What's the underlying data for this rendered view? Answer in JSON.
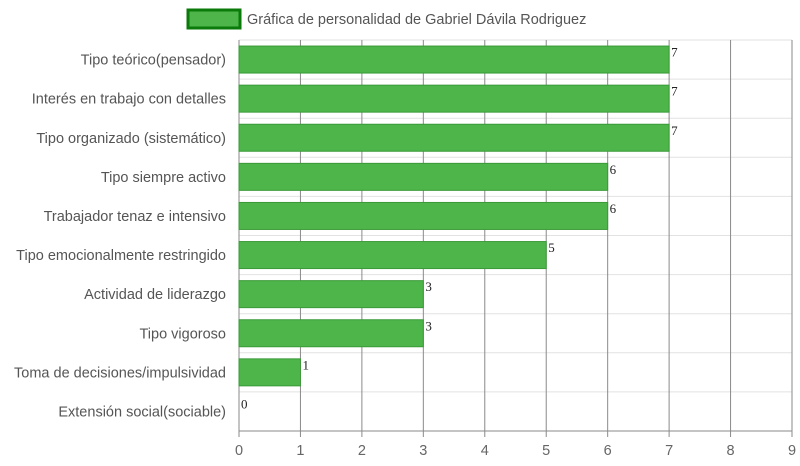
{
  "chart_data": {
    "type": "bar",
    "orientation": "horizontal",
    "categories": [
      "Tipo teórico(pensador)",
      "Interés en trabajo con detalles",
      "Tipo organizado (sistemático)",
      "Tipo siempre activo",
      "Trabajador tenaz e intensivo",
      "Tipo emocionalmente restringido",
      "Actividad de liderazgo",
      "Tipo vigoroso",
      "Toma de decisiones/impulsividad",
      "Extensión social(sociable)"
    ],
    "series": [
      {
        "name": "Gráfica de personalidad de Gabriel Dávila Rodriguez",
        "values": [
          7,
          7,
          7,
          6,
          6,
          5,
          3,
          3,
          1,
          0
        ]
      }
    ],
    "xlim": [
      0,
      9
    ],
    "xticks": [
      0,
      1,
      2,
      3,
      4,
      5,
      6,
      7,
      8,
      9
    ],
    "grid": true,
    "legend_position": "top",
    "data_labels": true,
    "colors": {
      "bar_fill": "#4db54a",
      "bar_stroke": "#3a9a38",
      "legend_fill": "#4db54a",
      "legend_stroke": "#0a7a0a",
      "grid_major": "#8a8a8a",
      "grid_minor": "#e2e2e2"
    }
  }
}
